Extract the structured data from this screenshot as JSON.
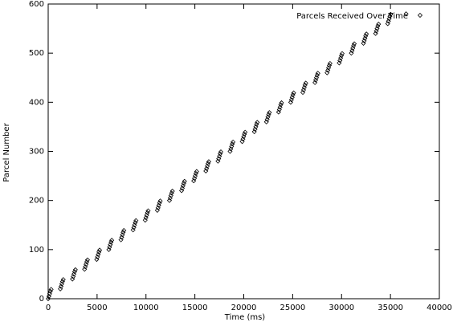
{
  "chart_data": {
    "type": "scatter",
    "xlabel": "Time (ms)",
    "ylabel": "Parcel Number",
    "xlim": [
      0,
      40000
    ],
    "ylim": [
      0,
      600
    ],
    "xticks": [
      0,
      5000,
      10000,
      15000,
      20000,
      25000,
      30000,
      35000,
      40000
    ],
    "yticks": [
      0,
      100,
      200,
      300,
      400,
      500,
      600
    ],
    "grid": false,
    "legend": "top-right",
    "x": [
      0,
      75,
      150,
      225,
      300,
      1240,
      1315,
      1390,
      1465,
      1540,
      2480,
      2555,
      2630,
      2705,
      2780,
      3720,
      3795,
      3870,
      3945,
      4020,
      4960,
      5035,
      5110,
      5185,
      5260,
      6200,
      6275,
      6350,
      6425,
      6500,
      7440,
      7515,
      7590,
      7665,
      7740,
      8680,
      8755,
      8830,
      8905,
      8980,
      9920,
      9995,
      10070,
      10145,
      10220,
      11160,
      11235,
      11310,
      11385,
      11460,
      12400,
      12475,
      12550,
      12625,
      12700,
      13640,
      13715,
      13790,
      13865,
      13940,
      14880,
      14955,
      15030,
      15105,
      15180,
      16120,
      16195,
      16270,
      16345,
      16420,
      17360,
      17435,
      17510,
      17585,
      17660,
      18600,
      18675,
      18750,
      18825,
      18900,
      19840,
      19915,
      19990,
      20065,
      20140,
      21080,
      21155,
      21230,
      21305,
      21380,
      22320,
      22395,
      22470,
      22545,
      22620,
      23560,
      23635,
      23710,
      23785,
      23860,
      24800,
      24875,
      24950,
      25025,
      25100,
      26040,
      26115,
      26190,
      26265,
      26340,
      27280,
      27355,
      27430,
      27505,
      27580,
      28520,
      28595,
      28670,
      28745,
      28820,
      29760,
      29835,
      29910,
      29985,
      30060,
      31000,
      31075,
      31150,
      31225,
      31300,
      32240,
      32315,
      32390,
      32465,
      32540,
      33480,
      33555,
      33630,
      33705,
      33780,
      34720,
      34795,
      34870,
      34945,
      35020,
      36600
    ],
    "series": [
      {
        "name": "Parcels Received Over Time",
        "color": "#000000",
        "values": [
          0,
          5,
          10,
          15,
          19,
          20,
          25,
          30,
          35,
          39,
          40,
          45,
          50,
          55,
          59,
          60,
          65,
          70,
          75,
          79,
          80,
          85,
          90,
          95,
          99,
          100,
          105,
          110,
          115,
          119,
          120,
          125,
          130,
          135,
          139,
          140,
          145,
          150,
          155,
          159,
          160,
          165,
          170,
          175,
          179,
          180,
          185,
          190,
          195,
          199,
          200,
          205,
          210,
          215,
          219,
          220,
          225,
          230,
          235,
          239,
          240,
          245,
          250,
          255,
          259,
          260,
          265,
          270,
          275,
          279,
          280,
          285,
          290,
          295,
          299,
          300,
          305,
          310,
          315,
          319,
          320,
          325,
          330,
          335,
          339,
          340,
          345,
          350,
          355,
          359,
          360,
          365,
          370,
          375,
          379,
          380,
          385,
          390,
          395,
          399,
          400,
          405,
          410,
          415,
          419,
          420,
          425,
          430,
          435,
          439,
          440,
          445,
          450,
          455,
          459,
          460,
          465,
          470,
          475,
          479,
          480,
          485,
          490,
          495,
          499,
          500,
          505,
          510,
          515,
          519,
          520,
          525,
          530,
          535,
          539,
          540,
          545,
          550,
          555,
          559,
          560,
          565,
          570,
          575,
          579,
          580
        ]
      }
    ]
  }
}
